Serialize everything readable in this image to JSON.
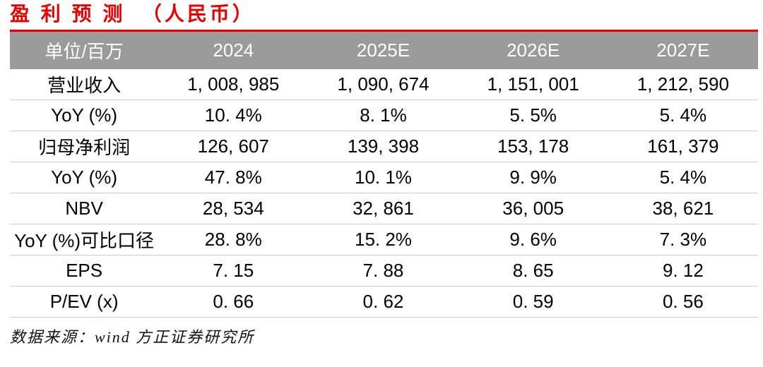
{
  "title": "盈 利 预 测  （人民币）",
  "colors": {
    "accent_red": "#e80000",
    "header_bg": "#9b9b9b",
    "header_text": "#ffffff",
    "row_divider": "#cccccc",
    "body_text": "#000000"
  },
  "table": {
    "headers": [
      "单位/百万",
      "2024",
      "2025E",
      "2026E",
      "2027E"
    ],
    "rows": [
      {
        "label": "营业收入",
        "values": [
          "1, 008, 985",
          "1, 090, 674",
          "1, 151, 001",
          "1, 212, 590"
        ]
      },
      {
        "label": "YoY (%)",
        "values": [
          "10. 4%",
          "8. 1%",
          "5. 5%",
          "5. 4%"
        ]
      },
      {
        "label": "归母净利润",
        "values": [
          "126, 607",
          "139, 398",
          "153, 178",
          "161, 379"
        ]
      },
      {
        "label": "YoY (%)",
        "values": [
          "47. 8%",
          "10. 1%",
          "9. 9%",
          "5. 4%"
        ]
      },
      {
        "label": "NBV",
        "values": [
          "28, 534",
          "32, 861",
          "36, 005",
          "38, 621"
        ]
      },
      {
        "label": "YoY (%)可比口径",
        "values": [
          "28. 8%",
          "15. 2%",
          "9. 6%",
          "7. 3%"
        ]
      },
      {
        "label": "EPS",
        "values": [
          "7. 15",
          "7. 88",
          "8. 65",
          "9. 12"
        ]
      },
      {
        "label": "P/EV (x)",
        "values": [
          "0. 66",
          "0. 62",
          "0. 59",
          "0. 56"
        ]
      }
    ]
  },
  "chart_data": {
    "type": "table",
    "title": "盈利预测（人民币）",
    "unit": "单位/百万",
    "columns": [
      "2024",
      "2025E",
      "2026E",
      "2027E"
    ],
    "rows": [
      {
        "metric": "营业收入",
        "values": [
          "1,008,985",
          "1,090,674",
          "1,151,001",
          "1,212,590"
        ]
      },
      {
        "metric": "YoY (%)",
        "values": [
          "10.4%",
          "8.1%",
          "5.5%",
          "5.4%"
        ]
      },
      {
        "metric": "归母净利润",
        "values": [
          "126,607",
          "139,398",
          "153,178",
          "161,379"
        ]
      },
      {
        "metric": "YoY (%)",
        "values": [
          "47.8%",
          "10.1%",
          "9.9%",
          "5.4%"
        ]
      },
      {
        "metric": "NBV",
        "values": [
          "28,534",
          "32,861",
          "36,005",
          "38,621"
        ]
      },
      {
        "metric": "YoY (%)可比口径",
        "values": [
          "28.8%",
          "15.2%",
          "9.6%",
          "7.3%"
        ]
      },
      {
        "metric": "EPS",
        "values": [
          "7.15",
          "7.88",
          "8.65",
          "9.12"
        ]
      },
      {
        "metric": "P/EV (x)",
        "values": [
          "0.66",
          "0.62",
          "0.59",
          "0.56"
        ]
      }
    ]
  },
  "footer": {
    "source_note": "数据来源：wind 方正证券研究所"
  }
}
